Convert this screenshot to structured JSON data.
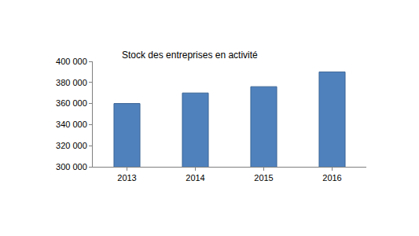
{
  "chart_data": {
    "type": "bar",
    "title": "Stock des entreprises en activité",
    "categories": [
      "2013",
      "2014",
      "2015",
      "2016"
    ],
    "values": [
      360000,
      370000,
      376000,
      390000
    ],
    "color": "#4f81bd",
    "ylim": [
      300000,
      400000
    ],
    "yticks": [
      {
        "value": 300000,
        "label": "300 000"
      },
      {
        "value": 320000,
        "label": "320 000"
      },
      {
        "value": 340000,
        "label": "340 000"
      },
      {
        "value": 360000,
        "label": "360 000"
      },
      {
        "value": 380000,
        "label": "380 000"
      },
      {
        "value": 400000,
        "label": "400 000"
      }
    ],
    "grid": false
  }
}
